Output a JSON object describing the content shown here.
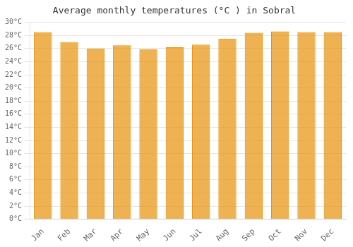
{
  "chart_data": {
    "type": "bar",
    "title": "Average monthly temperatures (°C ) in Sobral",
    "categories": [
      "Jan",
      "Feb",
      "Mar",
      "Apr",
      "May",
      "Jun",
      "Jul",
      "Aug",
      "Sep",
      "Oct",
      "Nov",
      "Dec"
    ],
    "values": [
      28.5,
      27.0,
      26.0,
      26.5,
      25.9,
      26.2,
      26.6,
      27.5,
      28.4,
      28.6,
      28.5,
      28.5
    ],
    "color": "#E8920A",
    "ylim": [
      0,
      30
    ],
    "yticks": [
      {
        "value": 0,
        "label": "0°C"
      },
      {
        "value": 2,
        "label": "2°C"
      },
      {
        "value": 4,
        "label": "4°C"
      },
      {
        "value": 6,
        "label": "6°C"
      },
      {
        "value": 8,
        "label": "8°C"
      },
      {
        "value": 10,
        "label": "10°C"
      },
      {
        "value": 12,
        "label": "12°C"
      },
      {
        "value": 14,
        "label": "14°C"
      },
      {
        "value": 16,
        "label": "16°C"
      },
      {
        "value": 18,
        "label": "18°C"
      },
      {
        "value": 20,
        "label": "20°C"
      },
      {
        "value": 22,
        "label": "22°C"
      },
      {
        "value": 24,
        "label": "24°C"
      },
      {
        "value": 26,
        "label": "26°C"
      },
      {
        "value": 28,
        "label": "28°C"
      },
      {
        "value": 30,
        "label": "30°C"
      }
    ],
    "grid": true
  }
}
